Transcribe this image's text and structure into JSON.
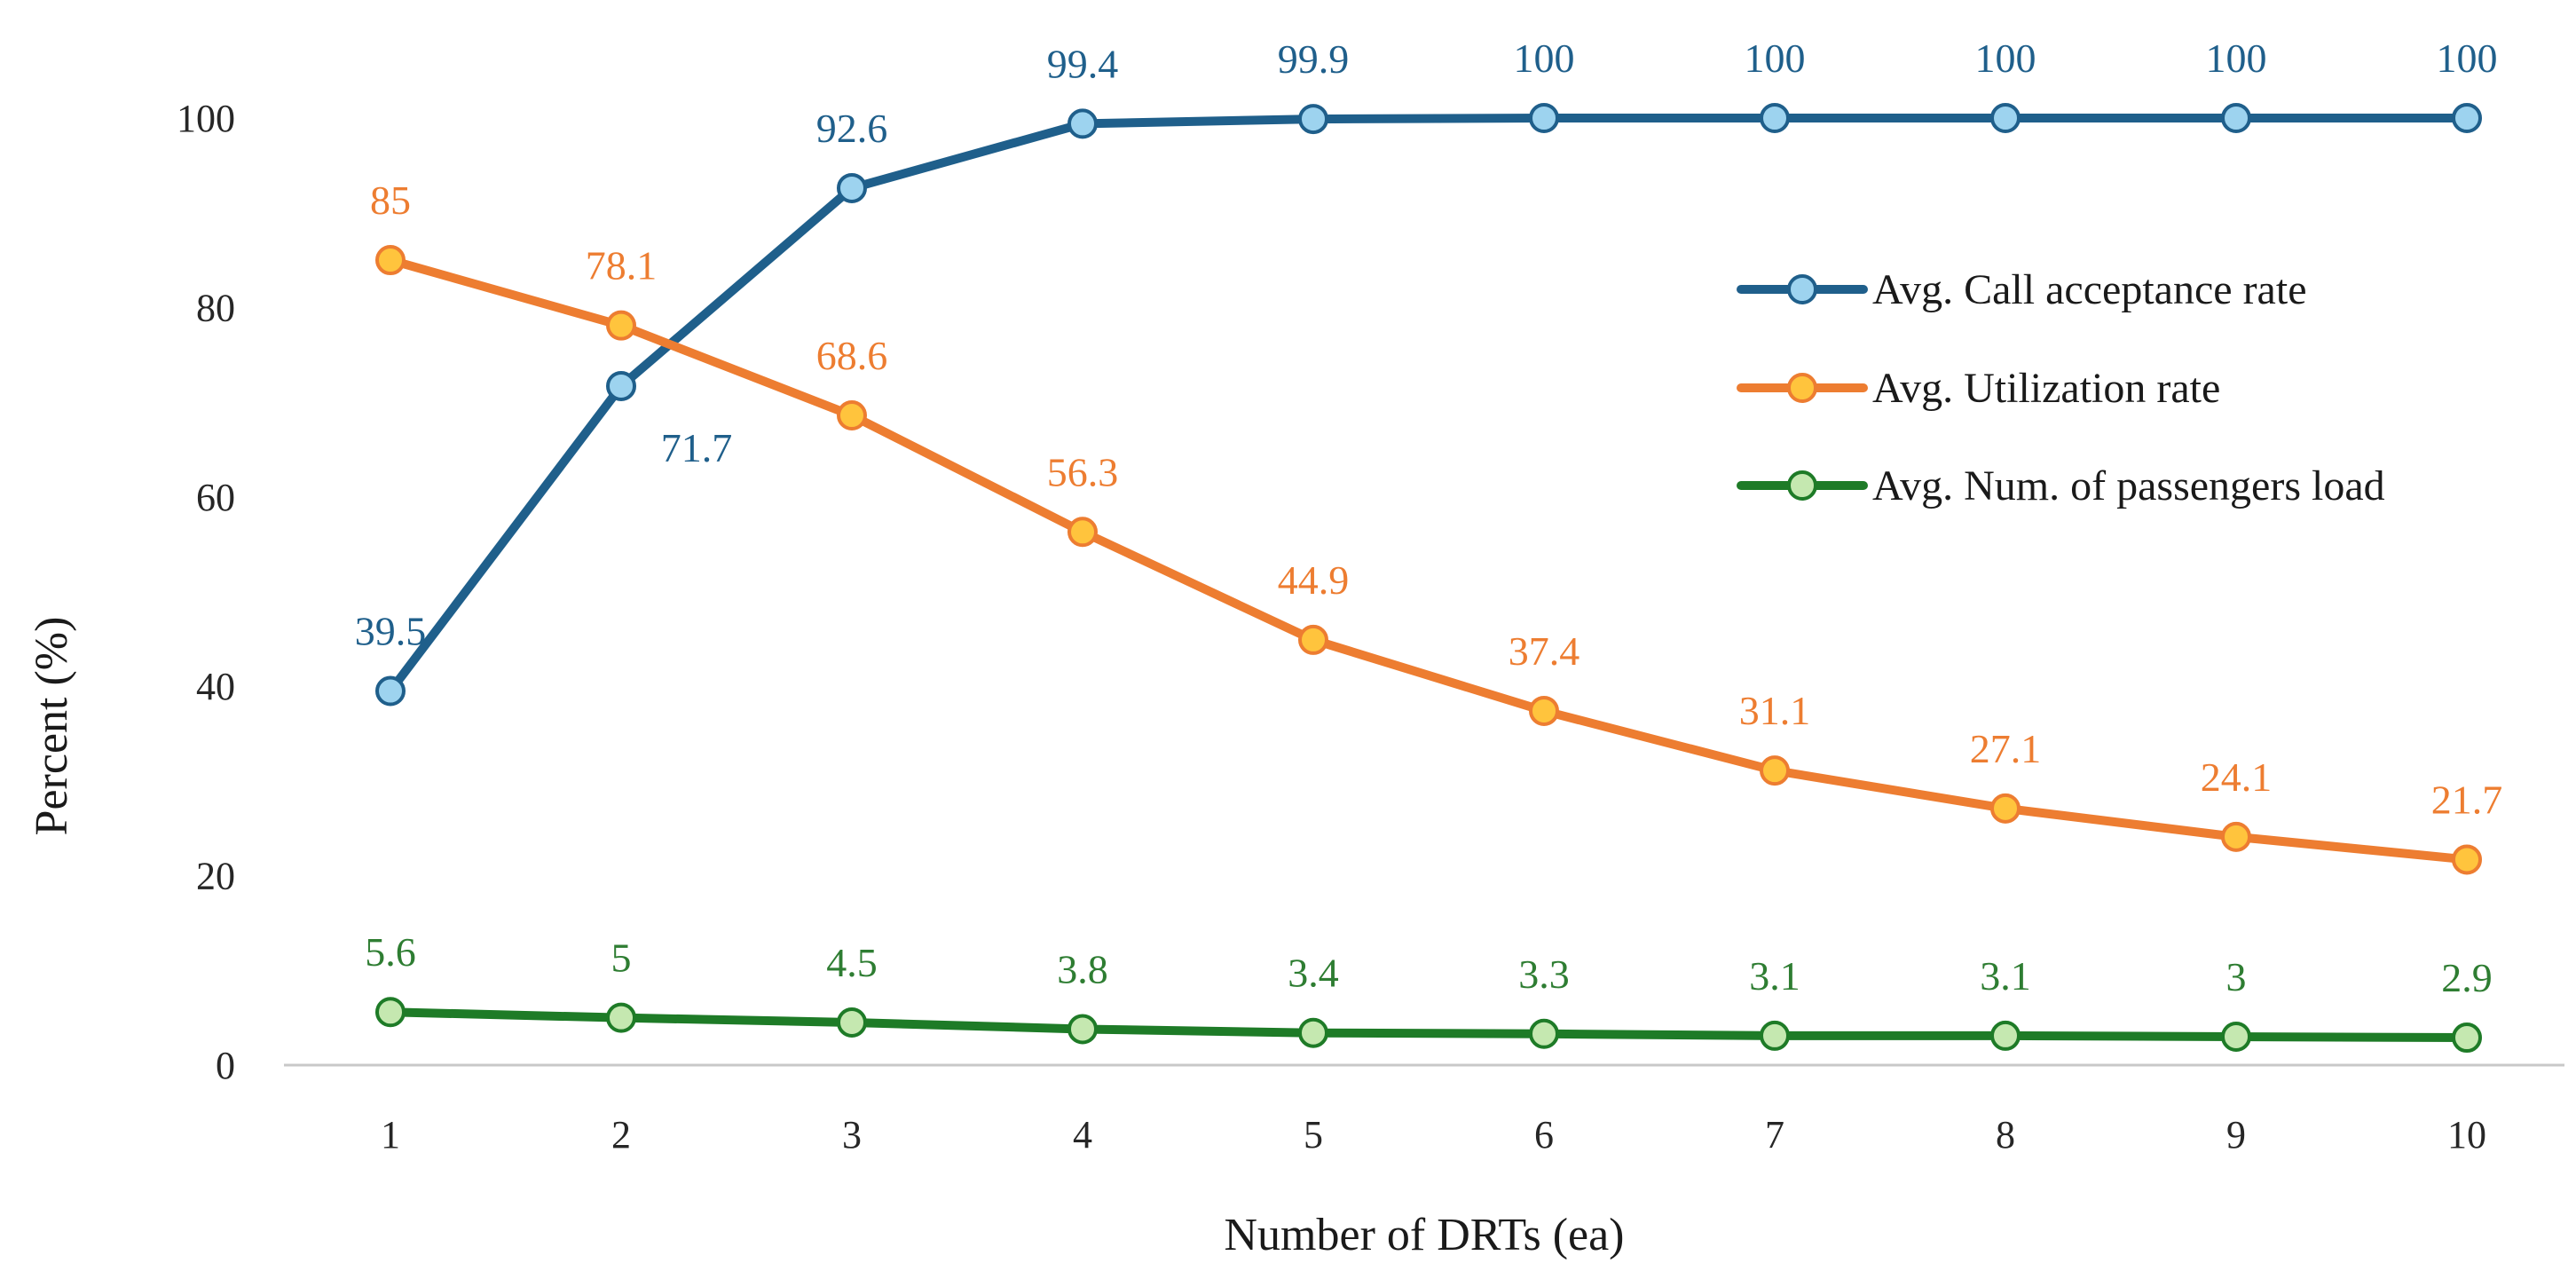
{
  "chart_data": {
    "type": "line",
    "title": "",
    "xlabel": "Number of DRTs (ea)",
    "ylabel": "Percent (%)",
    "x": [
      1,
      2,
      3,
      4,
      5,
      6,
      7,
      8,
      9,
      10
    ],
    "x_tick_labels": [
      "1",
      "2",
      "3",
      "4",
      "5",
      "6",
      "7",
      "8",
      "9",
      "10"
    ],
    "y_tick_labels": [
      "0",
      "20",
      "40",
      "60",
      "80",
      "100"
    ],
    "y_ticks": [
      0,
      20,
      40,
      60,
      80,
      100
    ],
    "ylim": [
      0,
      100
    ],
    "grid": false,
    "legend_position": "right",
    "series": [
      {
        "name": "Avg. Call acceptance rate",
        "line_color": "#1F5F8B",
        "marker_color": "#9DD3EF",
        "label_color": "#1F5F8B",
        "values": [
          39.5,
          71.7,
          92.6,
          99.4,
          99.9,
          100,
          100,
          100,
          100,
          100
        ],
        "labels": [
          "39.5",
          "71.7",
          "92.6",
          "99.4",
          "99.9",
          "100",
          "100",
          "100",
          "100",
          "100"
        ]
      },
      {
        "name": "Avg. Utilization rate",
        "line_color": "#ED7D31",
        "marker_color": "#FFC43D",
        "label_color": "#ED7D31",
        "values": [
          85,
          78.1,
          68.6,
          56.3,
          44.9,
          37.4,
          31.1,
          27.1,
          24.1,
          21.7
        ],
        "labels": [
          "85",
          "78.1",
          "68.6",
          "56.3",
          "44.9",
          "37.4",
          "31.1",
          "27.1",
          "24.1",
          "21.7"
        ]
      },
      {
        "name": "Avg. Num. of passengers load",
        "line_color": "#1E7B27",
        "marker_color": "#C5E8B0",
        "label_color": "#2E7D32",
        "values": [
          5.6,
          5,
          4.5,
          3.8,
          3.4,
          3.3,
          3.1,
          3.1,
          3,
          2.9
        ],
        "labels": [
          "5.6",
          "5",
          "4.5",
          "3.8",
          "3.4",
          "3.3",
          "3.1",
          "3.1",
          "3",
          "2.9"
        ]
      }
    ]
  }
}
